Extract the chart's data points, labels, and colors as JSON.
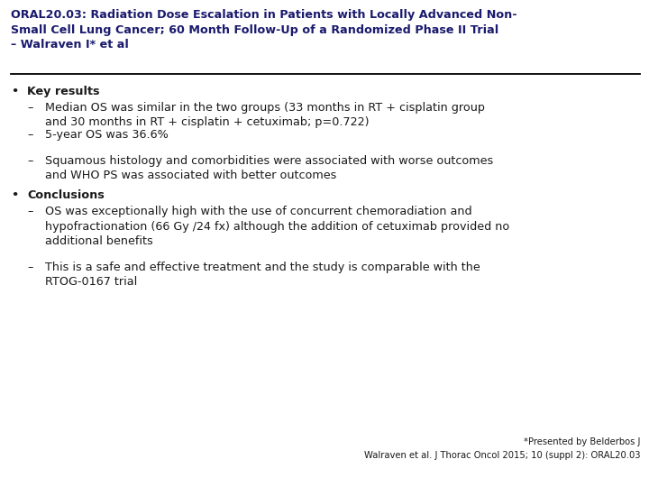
{
  "title_line1": "ORAL20.03: Radiation Dose Escalation in Patients with Locally Advanced Non-",
  "title_line2": "Small Cell Lung Cancer; 60 Month Follow-Up of a Randomized Phase II Trial",
  "title_line3": "– Walraven I* et al",
  "bg_color": "#ffffff",
  "title_color": "#1a1a6e",
  "body_color": "#1a1a1a",
  "bullet1_header": "Key results",
  "bullet1_items": [
    "Median OS was similar in the two groups (33 months in RT + cisplatin group\nand 30 months in RT + cisplatin + cetuximab; p=0.722)",
    "5-year OS was 36.6%",
    "Squamous histology and comorbidities were associated with worse outcomes\nand WHO PS was associated with better outcomes"
  ],
  "bullet2_header": "Conclusions",
  "bullet2_items": [
    "OS was exceptionally high with the use of concurrent chemoradiation and\nhypofractionation (66 Gy /24 fx) although the addition of cetuximab provided no\nadditional benefits",
    "This is a safe and effective treatment and the study is comparable with the\nRTOG-0167 trial"
  ],
  "footnote1": "*Presented by Belderbos J",
  "footnote2": "Walraven et al. J Thorac Oncol 2015; 10 (suppl 2): ORAL20.03",
  "line_color": "#000000",
  "title_fontsize": 9.2,
  "header_fontsize": 9.2,
  "body_fontsize": 9.2,
  "footnote_fontsize": 7.2,
  "font_family": "DejaVu Sans"
}
